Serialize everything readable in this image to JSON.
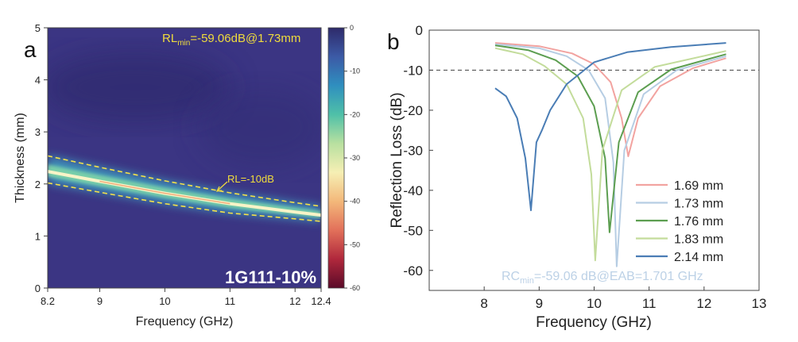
{
  "chart_data": [
    {
      "panel": "a",
      "type": "heatmap",
      "title": "",
      "xlabel": "Frequency (GHz)",
      "ylabel": "Thickness (mm)",
      "xlim": [
        8.2,
        12.4
      ],
      "ylim": [
        0,
        5
      ],
      "x_ticks": [
        "8.2",
        "9",
        "10",
        "11",
        "12",
        "12.4"
      ],
      "x_tick_values": [
        8.2,
        9,
        10,
        11,
        12,
        12.4
      ],
      "y_ticks": [
        "0",
        "1",
        "2",
        "3",
        "4",
        "5"
      ],
      "y_tick_values": [
        0,
        1,
        2,
        3,
        4,
        5
      ],
      "colorbar": {
        "range": [
          -60,
          0
        ],
        "ticks": [
          "0",
          "-10",
          "-20",
          "-30",
          "-40",
          "-50",
          "-60"
        ],
        "tick_values": [
          0,
          -10,
          -20,
          -30,
          -40,
          -50,
          -60
        ],
        "colors": [
          "#2e2a6a",
          "#3c5aa6",
          "#2f8fbf",
          "#4fc0a8",
          "#b8e0a0",
          "#f6efb4",
          "#f3b87a",
          "#e2705a",
          "#b0283c",
          "#5a0a28"
        ]
      },
      "optimal_band": {
        "frequency": [
          8.2,
          9.0,
          10.0,
          11.0,
          12.0,
          12.4
        ],
        "thickness": [
          2.24,
          2.05,
          1.82,
          1.62,
          1.46,
          1.4
        ]
      },
      "contour_minus10_upper": {
        "frequency": [
          8.2,
          9.0,
          10.0,
          11.0,
          12.0,
          12.4
        ],
        "thickness": [
          2.54,
          2.32,
          2.06,
          1.83,
          1.64,
          1.57
        ]
      },
      "contour_minus10_lower": {
        "frequency": [
          8.2,
          9.0,
          10.0,
          11.0,
          12.0,
          12.4
        ],
        "thickness": [
          2.02,
          1.84,
          1.62,
          1.44,
          1.33,
          1.28
        ]
      },
      "annotations": {
        "rl_min_prefix": "RL",
        "rl_min_sub": "min",
        "rl_min_value": "=-59.06dB@1.73mm",
        "contour_label": "RL=-10dB",
        "sample_label": "1G111-10%"
      }
    },
    {
      "panel": "b",
      "type": "line",
      "title": "",
      "xlabel": "Frequency (GHz)",
      "ylabel": "Reflection Loss (dB)",
      "xlim": [
        7,
        13
      ],
      "ylim": [
        -65,
        0
      ],
      "x_ticks": [
        "8",
        "9",
        "10",
        "11",
        "12",
        "13"
      ],
      "x_tick_values": [
        8,
        9,
        10,
        11,
        12,
        13
      ],
      "y_ticks": [
        "0",
        "-10",
        "-20",
        "-30",
        "-40",
        "-50",
        "-60"
      ],
      "y_tick_values": [
        0,
        -10,
        -20,
        -30,
        -40,
        -50,
        -60
      ],
      "reference_line": -10,
      "series": [
        {
          "name": "1.69 mm",
          "color": "#f2a3a0",
          "x": [
            8.2,
            9.0,
            9.6,
            10.0,
            10.3,
            10.5,
            10.62,
            10.8,
            11.2,
            11.8,
            12.4
          ],
          "y": [
            -3.2,
            -4.0,
            -5.8,
            -8.5,
            -13.0,
            -22.0,
            -31.5,
            -22.0,
            -14.0,
            -9.5,
            -7.0
          ]
        },
        {
          "name": "1.73 mm",
          "color": "#b6cde3",
          "x": [
            8.2,
            9.0,
            9.5,
            9.9,
            10.2,
            10.35,
            10.41,
            10.55,
            10.9,
            11.5,
            12.4
          ],
          "y": [
            -3.5,
            -4.5,
            -6.5,
            -10.0,
            -17.0,
            -33.0,
            -59.0,
            -30.0,
            -16.0,
            -10.0,
            -6.5
          ]
        },
        {
          "name": "1.76 mm",
          "color": "#5c9e50",
          "x": [
            8.2,
            8.8,
            9.3,
            9.7,
            10.0,
            10.2,
            10.28,
            10.45,
            10.8,
            11.4,
            12.4
          ],
          "y": [
            -3.8,
            -5.0,
            -7.5,
            -11.5,
            -19.0,
            -32.0,
            -50.5,
            -28.0,
            -15.5,
            -9.8,
            -6.0
          ]
        },
        {
          "name": "1.83 mm",
          "color": "#c3dc9b",
          "x": [
            8.2,
            8.7,
            9.1,
            9.5,
            9.8,
            9.95,
            10.02,
            10.15,
            10.5,
            11.1,
            12.4
          ],
          "y": [
            -4.5,
            -6.0,
            -9.0,
            -13.5,
            -22.0,
            -36.0,
            -57.5,
            -30.0,
            -15.0,
            -9.2,
            -5.2
          ]
        },
        {
          "name": "2.14 mm",
          "color": "#4a7db5",
          "x": [
            8.2,
            8.4,
            8.6,
            8.75,
            8.85,
            8.95,
            9.05,
            9.2,
            9.5,
            10.0,
            10.6,
            11.4,
            12.4
          ],
          "y": [
            -14.5,
            -16.5,
            -22.0,
            -32.0,
            -45.0,
            -28.0,
            -25.0,
            -20.0,
            -13.5,
            -8.0,
            -5.5,
            -4.2,
            -3.2
          ]
        }
      ],
      "annotations": {
        "rc_min_prefix": "RC",
        "rc_min_sub": "min",
        "rc_min_value": "=-59.06 dB@EAB=1.701 GHz",
        "color": "#bcd1e6"
      }
    }
  ]
}
